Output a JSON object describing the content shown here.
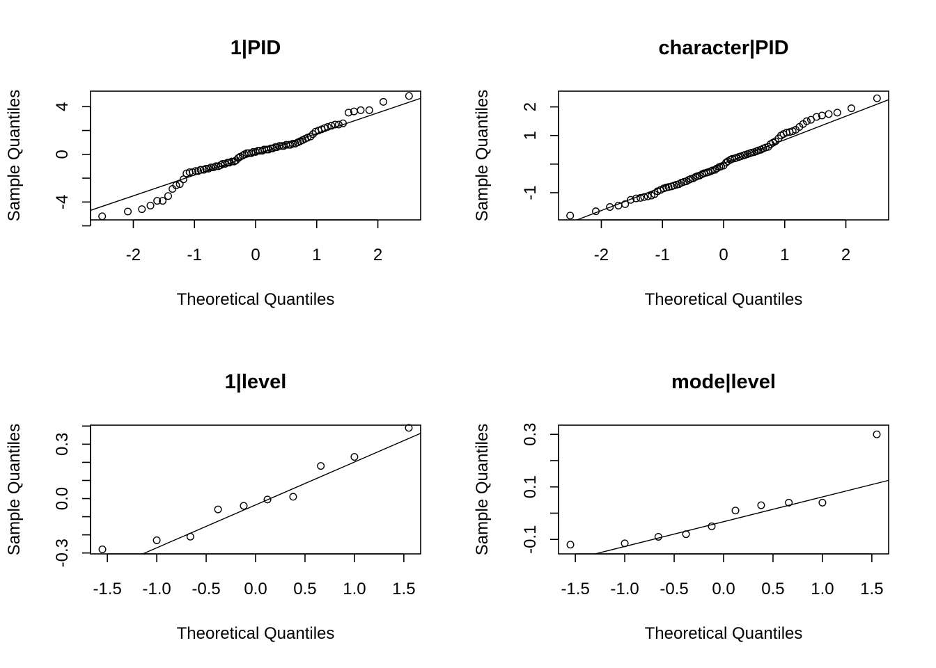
{
  "chart_data": [
    {
      "type": "scatter",
      "title": "1|PID",
      "xlabel": "Theoretical Quantiles",
      "ylabel": "Sample Quantiles",
      "xlim": [
        -2.7,
        2.7
      ],
      "ylim": [
        -5.5,
        5.3
      ],
      "xticks": [
        -2,
        -1,
        0,
        1,
        2
      ],
      "xtick_labels": [
        "-2",
        "-1",
        "0",
        "1",
        "2"
      ],
      "yticks": [
        -6,
        -4,
        -2,
        0,
        2,
        4
      ],
      "ytick_labels": [
        "",
        "-4",
        "",
        "0",
        "",
        "4"
      ],
      "line": [
        [
          -2.7,
          -4.7
        ],
        [
          2.7,
          4.7
        ]
      ],
      "points": {
        "x": [
          -2.51,
          -2.09,
          -1.86,
          -1.72,
          -1.61,
          -1.52,
          -1.43,
          -1.36,
          -1.3,
          -1.24,
          -1.18,
          -1.13,
          -1.08,
          -1.03,
          -0.98,
          -0.94,
          -0.9,
          -0.85,
          -0.81,
          -0.77,
          -0.73,
          -0.69,
          -0.65,
          -0.61,
          -0.57,
          -0.54,
          -0.5,
          -0.46,
          -0.43,
          -0.39,
          -0.35,
          -0.32,
          -0.28,
          -0.25,
          -0.21,
          -0.18,
          -0.14,
          -0.11,
          -0.07,
          -0.04,
          0.0,
          0.04,
          0.07,
          0.11,
          0.14,
          0.18,
          0.21,
          0.25,
          0.28,
          0.32,
          0.35,
          0.39,
          0.43,
          0.46,
          0.5,
          0.54,
          0.57,
          0.61,
          0.65,
          0.69,
          0.73,
          0.77,
          0.81,
          0.85,
          0.9,
          0.94,
          0.98,
          1.03,
          1.08,
          1.13,
          1.18,
          1.24,
          1.3,
          1.36,
          1.43,
          1.52,
          1.61,
          1.72,
          1.86,
          2.09,
          2.51
        ],
        "y": [
          -5.2,
          -4.8,
          -4.6,
          -4.3,
          -3.9,
          -3.9,
          -3.5,
          -2.9,
          -2.6,
          -2.5,
          -2.1,
          -1.6,
          -1.5,
          -1.5,
          -1.4,
          -1.4,
          -1.3,
          -1.3,
          -1.2,
          -1.2,
          -1.1,
          -1.1,
          -1.0,
          -1.0,
          -0.9,
          -0.8,
          -0.8,
          -0.7,
          -0.7,
          -0.6,
          -0.6,
          -0.5,
          -0.3,
          -0.2,
          -0.1,
          0.0,
          0.1,
          0.1,
          0.1,
          0.2,
          0.2,
          0.3,
          0.3,
          0.3,
          0.4,
          0.4,
          0.4,
          0.5,
          0.5,
          0.6,
          0.6,
          0.7,
          0.7,
          0.7,
          0.8,
          0.8,
          0.8,
          0.9,
          0.9,
          1.0,
          1.1,
          1.2,
          1.3,
          1.4,
          1.5,
          1.7,
          1.9,
          2.0,
          2.1,
          2.2,
          2.3,
          2.4,
          2.5,
          2.5,
          2.6,
          3.5,
          3.6,
          3.7,
          3.7,
          4.4,
          4.9
        ]
      }
    },
    {
      "type": "scatter",
      "title": "character|PID",
      "xlabel": "Theoretical Quantiles",
      "ylabel": "Sample Quantiles",
      "xlim": [
        -2.7,
        2.7
      ],
      "ylim": [
        -1.95,
        2.55
      ],
      "xticks": [
        -2,
        -1,
        0,
        1,
        2
      ],
      "xtick_labels": [
        "-2",
        "-1",
        "0",
        "1",
        "2"
      ],
      "yticks": [
        -1,
        0,
        1,
        2
      ],
      "ytick_labels": [
        "-1",
        "",
        "1",
        "2"
      ],
      "line": [
        [
          -2.7,
          -2.2
        ],
        [
          2.7,
          2.25
        ]
      ],
      "points": {
        "x": [
          -2.51,
          -2.09,
          -1.86,
          -1.72,
          -1.61,
          -1.52,
          -1.43,
          -1.36,
          -1.3,
          -1.24,
          -1.18,
          -1.13,
          -1.08,
          -1.03,
          -0.98,
          -0.94,
          -0.9,
          -0.85,
          -0.81,
          -0.77,
          -0.73,
          -0.69,
          -0.65,
          -0.61,
          -0.57,
          -0.54,
          -0.5,
          -0.46,
          -0.43,
          -0.39,
          -0.35,
          -0.32,
          -0.28,
          -0.25,
          -0.21,
          -0.18,
          -0.14,
          -0.11,
          -0.07,
          -0.04,
          0.0,
          0.04,
          0.07,
          0.11,
          0.14,
          0.18,
          0.21,
          0.25,
          0.28,
          0.32,
          0.35,
          0.39,
          0.43,
          0.46,
          0.5,
          0.54,
          0.57,
          0.61,
          0.65,
          0.69,
          0.73,
          0.77,
          0.81,
          0.85,
          0.9,
          0.94,
          0.98,
          1.03,
          1.08,
          1.13,
          1.18,
          1.24,
          1.3,
          1.36,
          1.43,
          1.52,
          1.61,
          1.72,
          1.86,
          2.09,
          2.51
        ],
        "y": [
          -1.8,
          -1.65,
          -1.5,
          -1.45,
          -1.4,
          -1.25,
          -1.2,
          -1.18,
          -1.15,
          -1.13,
          -1.1,
          -1.05,
          -0.95,
          -0.9,
          -0.85,
          -0.82,
          -0.8,
          -0.78,
          -0.75,
          -0.72,
          -0.7,
          -0.65,
          -0.62,
          -0.6,
          -0.55,
          -0.52,
          -0.5,
          -0.45,
          -0.42,
          -0.4,
          -0.35,
          -0.32,
          -0.3,
          -0.28,
          -0.25,
          -0.22,
          -0.2,
          -0.15,
          -0.1,
          -0.08,
          -0.05,
          0.05,
          0.1,
          0.15,
          0.18,
          0.2,
          0.22,
          0.25,
          0.27,
          0.3,
          0.32,
          0.35,
          0.38,
          0.4,
          0.42,
          0.45,
          0.48,
          0.5,
          0.55,
          0.58,
          0.6,
          0.7,
          0.75,
          0.8,
          0.9,
          1.0,
          1.05,
          1.1,
          1.12,
          1.15,
          1.2,
          1.3,
          1.4,
          1.5,
          1.55,
          1.65,
          1.7,
          1.75,
          1.8,
          1.95,
          2.3
        ]
      }
    },
    {
      "type": "scatter",
      "title": "1|level",
      "xlabel": "Theoretical Quantiles",
      "ylabel": "Sample Quantiles",
      "xlim": [
        -1.67,
        1.67
      ],
      "ylim": [
        -0.305,
        0.405
      ],
      "xticks": [
        -1.5,
        -1.0,
        -0.5,
        0.0,
        0.5,
        1.0,
        1.5
      ],
      "xtick_labels": [
        "-1.5",
        "-1.0",
        "-0.5",
        "0.0",
        "0.5",
        "1.0",
        "1.5"
      ],
      "yticks": [
        -0.3,
        -0.2,
        -0.1,
        0.0,
        0.1,
        0.2,
        0.3,
        0.4
      ],
      "ytick_labels": [
        "-0.3",
        "",
        "",
        "0.0",
        "",
        "",
        "0.3",
        ""
      ],
      "line": [
        [
          -1.67,
          -0.43
        ],
        [
          1.67,
          0.36
        ]
      ],
      "points": {
        "x": [
          -1.55,
          -1.0,
          -0.66,
          -0.38,
          -0.12,
          0.12,
          0.38,
          0.66,
          1.0,
          1.55
        ],
        "y": [
          -0.28,
          -0.23,
          -0.21,
          -0.06,
          -0.04,
          -0.005,
          0.01,
          0.18,
          0.23,
          0.39
        ]
      }
    },
    {
      "type": "scatter",
      "title": "mode|level",
      "xlabel": "Theoretical Quantiles",
      "ylabel": "Sample Quantiles",
      "xlim": [
        -1.67,
        1.67
      ],
      "ylim": [
        -0.155,
        0.335
      ],
      "xticks": [
        -1.5,
        -1.0,
        -0.5,
        0.0,
        0.5,
        1.0,
        1.5
      ],
      "xtick_labels": [
        "-1.5",
        "-1.0",
        "-0.5",
        "0.0",
        "0.5",
        "1.0",
        "1.5"
      ],
      "yticks": [
        -0.1,
        0.0,
        0.1,
        0.2,
        0.3
      ],
      "ytick_labels": [
        "-0.1",
        "",
        "0.1",
        "",
        "0.3"
      ],
      "line": [
        [
          -1.67,
          -0.19
        ],
        [
          1.67,
          0.125
        ]
      ],
      "points": {
        "x": [
          -1.55,
          -1.0,
          -0.66,
          -0.38,
          -0.12,
          0.12,
          0.38,
          0.66,
          1.0,
          1.55
        ],
        "y": [
          -0.12,
          -0.115,
          -0.09,
          -0.08,
          -0.05,
          0.01,
          0.03,
          0.04,
          0.04,
          0.3
        ]
      }
    }
  ]
}
